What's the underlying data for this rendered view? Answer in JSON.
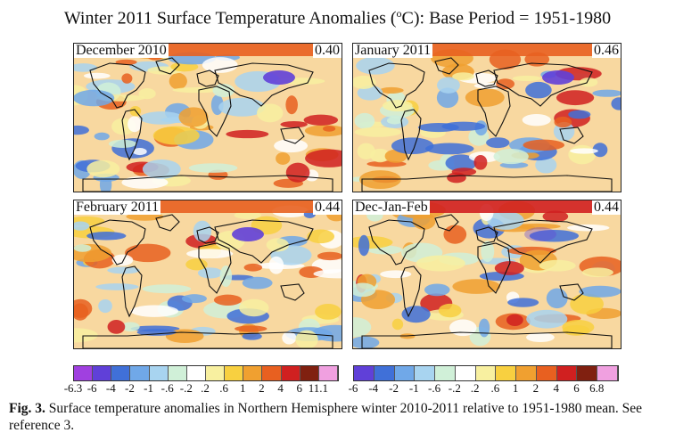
{
  "title_prefix": "Winter 2011 Surface Temperature Anomalies (",
  "title_unit_sup": "o",
  "title_suffix": "C): Base Period = 1951-1980",
  "panels": [
    {
      "label": "December 2010",
      "value": "0.40",
      "variant": 0
    },
    {
      "label": "January 2011",
      "value": "0.46",
      "variant": 1
    },
    {
      "label": "February 2011",
      "value": "0.44",
      "variant": 2
    },
    {
      "label": "Dec-Jan-Feb",
      "value": "0.44",
      "variant": 3
    }
  ],
  "colors": [
    "#a040e0",
    "#6040d8",
    "#4070d8",
    "#70a8e8",
    "#a8d4f0",
    "#d0f0d8",
    "#ffffff",
    "#f8f0a0",
    "#f8d040",
    "#f0a030",
    "#e86020",
    "#d02020",
    "#802010",
    "#f0a0e0"
  ],
  "scale_left_ticks": [
    "-6.3",
    "-6",
    "-4",
    "-2",
    "-1",
    "-.6",
    "-.2",
    ".2",
    ".6",
    "1",
    "2",
    "4",
    "6",
    "11.1"
  ],
  "scale_right_ticks": [
    "-6",
    "-4",
    "-2",
    "-1",
    "-.6",
    "-.2",
    ".2",
    ".6",
    "1",
    "2",
    "4",
    "6",
    "6.8"
  ],
  "caption_bold": "Fig. 3.",
  "caption_text": "  Surface temperature anomalies in Northern Hemisphere winter 2010-2011 relative to 1951-1980 mean.  See reference 3."
}
